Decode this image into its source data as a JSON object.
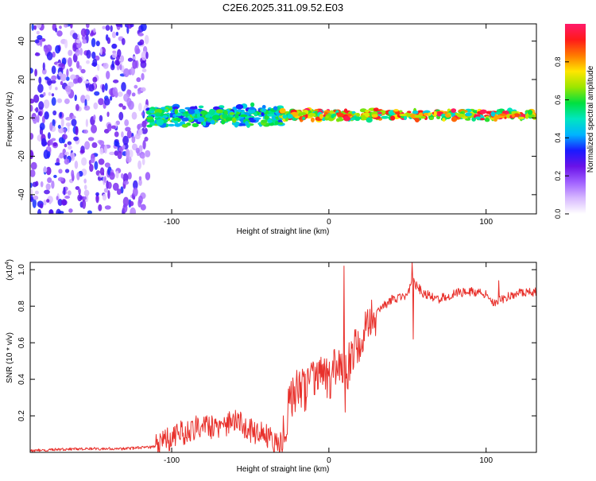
{
  "title": "C2E6.2025.311.09.52.E03",
  "colors": {
    "snr_line": "#e8302b",
    "axis": "#000000",
    "background": "#ffffff"
  },
  "chart_data": [
    {
      "type": "heatmap",
      "name": "spectrogram",
      "xlabel": "Height of straight line (km)",
      "ylabel": "Frequency (Hz)",
      "xlim": [
        -190,
        132
      ],
      "ylim": [
        -50,
        49
      ],
      "xticks": [
        -100,
        0,
        100
      ],
      "yticks": [
        -40,
        -20,
        0,
        20,
        40
      ],
      "colorbar": {
        "label": "Normalized spectral amplitude",
        "range": [
          0,
          1
        ],
        "ticks": [
          0.0,
          0.2,
          0.4,
          0.6,
          0.8
        ],
        "tick_labels": [
          "0.0",
          "0.2",
          "0.4",
          "0.6",
          "0.8"
        ],
        "stops": [
          "#ffffff",
          "#d7b8ff",
          "#a060ff",
          "#6a12e8",
          "#1a1aff",
          "#00b4ff",
          "#00e6c0",
          "#00e040",
          "#9be600",
          "#ffe600",
          "#ff7a00",
          "#ff1a1a",
          "#ff1a6a"
        ]
      },
      "segments": [
        {
          "region": "noise",
          "x_range": [
            -190,
            -115
          ],
          "freq_range": [
            -50,
            49
          ],
          "level_range": [
            0.05,
            0.35
          ]
        },
        {
          "region": "emerging_signal",
          "x_range": [
            -115,
            -30
          ],
          "freq_center": 1,
          "freq_halfwidth": 6,
          "level_range": [
            0.3,
            0.65
          ]
        },
        {
          "region": "strong_signal",
          "x_range": [
            -30,
            132
          ],
          "freq_center": 1.5,
          "freq_halfwidth": 3,
          "level_range": [
            0.45,
            1.0
          ]
        }
      ]
    },
    {
      "type": "line",
      "name": "snr",
      "xlabel": "Height of straight line (km)",
      "ylabel": "SNR (10 * v/v)",
      "y_multiplier": "(x10",
      "y_multiplier_exp": "4",
      "y_multiplier_close": ")",
      "xlim": [
        -190,
        132
      ],
      "ylim": [
        0,
        1.04
      ],
      "xticks": [
        -100,
        0,
        100
      ],
      "yticks": [
        0.2,
        0.4,
        0.6,
        0.8,
        1.0
      ],
      "ytick_labels": [
        "0.2",
        "0.4",
        "0.6",
        "0.8",
        "1.0"
      ],
      "series": [
        {
          "name": "SNR",
          "x": [
            -190,
            -160,
            -130,
            -112,
            -105,
            -100,
            -90,
            -80,
            -70,
            -60,
            -50,
            -40,
            -35,
            -30,
            -25,
            -20,
            -15,
            -10,
            -5,
            0,
            5,
            10,
            15,
            20,
            25,
            30,
            40,
            50,
            53,
            60,
            70,
            80,
            90,
            100,
            105,
            110,
            120,
            132
          ],
          "values": [
            0.01,
            0.02,
            0.02,
            0.03,
            0.06,
            0.08,
            0.12,
            0.16,
            0.13,
            0.17,
            0.12,
            0.09,
            0.06,
            0.05,
            0.28,
            0.35,
            0.33,
            0.4,
            0.45,
            0.38,
            0.48,
            0.4,
            0.55,
            0.58,
            0.7,
            0.76,
            0.84,
            0.85,
            0.94,
            0.87,
            0.84,
            0.87,
            0.88,
            0.87,
            0.82,
            0.84,
            0.87,
            0.88
          ]
        }
      ],
      "spikes": [
        {
          "x": 9.5,
          "value": 1.02
        },
        {
          "x": 10.5,
          "value": 0.22
        },
        {
          "x": 53,
          "value": 1.04
        },
        {
          "x": 53.5,
          "value": 0.62
        },
        {
          "x": 108,
          "value": 0.94
        }
      ]
    }
  ]
}
